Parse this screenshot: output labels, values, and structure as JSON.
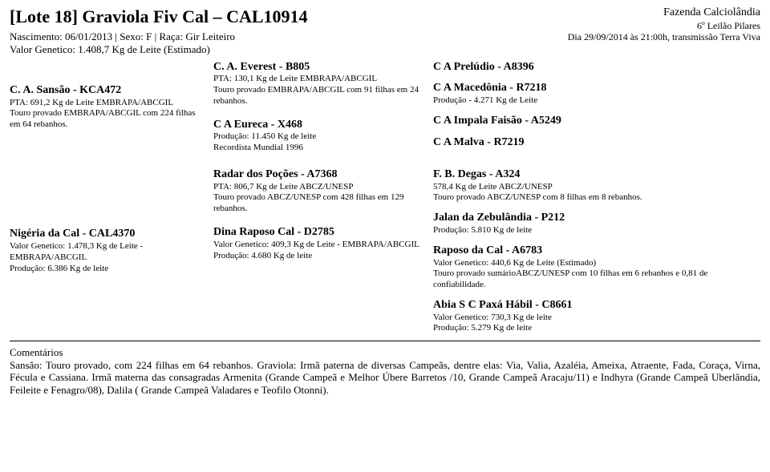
{
  "header": {
    "lot_title": "[Lote 18] Graviola Fiv Cal – CAL10914",
    "birth_line": "Nascimento: 06/01/2013 | Sexo: F | Raça: Gir Leiteiro",
    "gv_line": "Valor Genetico: 1.408,7 Kg de Leite (Estimado)",
    "farm": "Fazenda Calciolândia",
    "auction": "6º Leilão Pilares",
    "date_line": "Dia 29/09/2014 às 21:00h, transmissão Terra Viva"
  },
  "sire": {
    "name": "C. A. Sansão - KCA472",
    "l1": "PTA: 691,2 Kg de Leite EMBRAPA/ABCGIL",
    "l2": "Touro provado EMBRAPA/ABCGIL com 224 filhas em 64 rebanhos."
  },
  "ss": {
    "name": "C. A. Everest - B805",
    "l1": "PTA: 130,1 Kg de Leite EMBRAPA/ABCGIL",
    "l2": "Touro provado EMBRAPA/ABCGIL com 91 filhas em 24 rebanhos."
  },
  "sd": {
    "name": "C A Eureca - X468",
    "l1": "Produção: 11.450 Kg de leite",
    "l2": "Recordista Mundial 1996"
  },
  "sss": {
    "name": "C A Prelúdio - A8396"
  },
  "ssd": {
    "name": "C A Macedônia - R7218",
    "l1": "Produção - 4.271 Kg de Leite"
  },
  "sds": {
    "name": "C A Impala Faisão - A5249"
  },
  "sdd": {
    "name": "C A Malva - R7219"
  },
  "dam": {
    "name": "Nigéria da Cal - CAL4370",
    "l1": "Valor Genetico: 1.478,3 Kg de Leite - EMBRAPA/ABCGIL",
    "l2": "Produção: 6.386 Kg de leite"
  },
  "ds": {
    "name": "Radar dos Poções - A7368",
    "l1": "PTA: 806,7 Kg de Leite ABCZ/UNESP",
    "l2": "Touro provado ABCZ/UNESP com 428 filhas em 129 rebanhos."
  },
  "dd": {
    "name": "Dina Raposo Cal - D2785",
    "l1": "Valor Genetico: 409,3 Kg de Leite - EMBRAPA/ABCGIL",
    "l2": "Produção: 4.680 Kg de leite"
  },
  "dss": {
    "name": "F. B. Degas - A324",
    "l1": "578,4 Kg de Leite ABCZ/UNESP",
    "l2": "Touro provado ABCZ/UNESP com 8 filhas em 8 rebanhos."
  },
  "dsd": {
    "name": "Jalan da Zebulândia - P212",
    "l1": "Produção: 5.810 Kg de leite"
  },
  "dds": {
    "name": "Raposo da Cal - A6783",
    "l1": "Valor Genetico: 440,6 Kg de Leite (Estimado)",
    "l2": "Touro provado sumárioABCZ/UNESP com 10 filhas em 6 rebanhos e 0,81 de confiabilidade."
  },
  "ddd": {
    "name": "Abia S C Paxá Hábil - C8661",
    "l1": "Valor Genetico: 730,3 Kg de leite",
    "l2": "Produção: 5.279 Kg de leite"
  },
  "comments": {
    "title": "Comentários",
    "body": "Sansão: Touro provado, com 224 filhas em 64 rebanhos. Graviola: Irmã paterna de diversas Campeãs, dentre elas: Via, Valia, Azaléia, Ameixa, Atraente, Fada, Coraça, Virna, Fécula e Cassiana. Irmã materna das consagradas Armenita (Grande Campeã e Melhor Úbere Barretos /10, Grande Campeã Aracaju/11) e Indhyra (Grande Campeã Uberlândia, Feileite e Fenagro/08), Dalila ( Grande Campeã Valadares e Teofilo Otonni)."
  }
}
